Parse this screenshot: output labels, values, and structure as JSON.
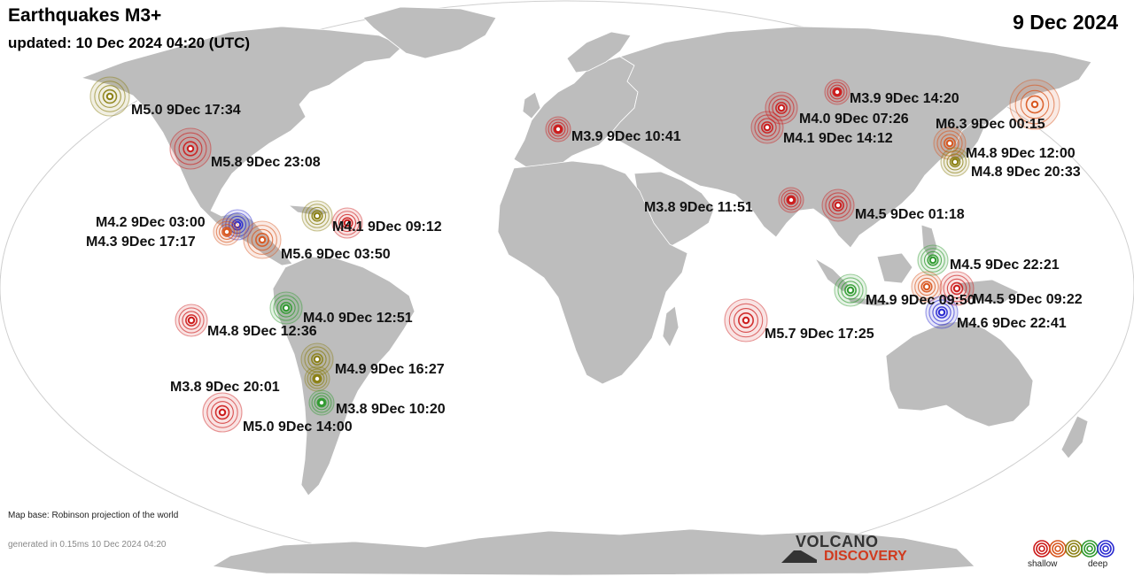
{
  "header": {
    "title": "Earthquakes M3+",
    "updated": "updated: 10 Dec 2024 04:20 (UTC)",
    "date": "9 Dec 2024"
  },
  "footer": {
    "map_base": "Map base: Robinson projection of the world",
    "generated": "generated in 0.15ms 10 Dec 2024 04:20"
  },
  "logo": {
    "line1": "VOLCANO",
    "line2": "DISCOVERY"
  },
  "legend": {
    "shallow": "shallow",
    "deep": "deep"
  },
  "colors": {
    "ocean": "#ffffff",
    "land": "#bdbdbd",
    "red": "#cc1a1a",
    "orange": "#d8561e",
    "olive": "#8a7f12",
    "green": "#2f9a2f",
    "blue": "#2a2ad0"
  },
  "quakes": [
    {
      "label": "M5.0  9Dec 17:34",
      "color": "olive",
      "place": "Alaska"
    },
    {
      "label": "M5.8  9Dec 23:08",
      "color": "red",
      "place": "California"
    },
    {
      "label": "M4.2  9Dec 03:00",
      "color": "blue",
      "place": "Mexico"
    },
    {
      "label": "M4.3  9Dec 17:17",
      "color": "orange",
      "place": "Mexico coast"
    },
    {
      "label": "M5.6  9Dec 03:50",
      "color": "orange",
      "place": "Central America"
    },
    {
      "label": "M4.1  9Dec 09:12",
      "color": "red",
      "place": "Caribbean"
    },
    {
      "label": "",
      "color": "olive",
      "place": "Caribbean"
    },
    {
      "label": "M4.8  9Dec 12:36",
      "color": "red",
      "place": "East Pacific"
    },
    {
      "label": "M4.0  9Dec 12:51",
      "color": "green",
      "place": "Peru"
    },
    {
      "label": "M4.9  9Dec 16:27",
      "color": "olive",
      "place": "Chile north"
    },
    {
      "label": "M3.8  9Dec 20:01",
      "color": "olive",
      "place": "Chile"
    },
    {
      "label": "M3.8  9Dec 10:20",
      "color": "green",
      "place": "Argentina"
    },
    {
      "label": "M5.0  9Dec 14:00",
      "color": "red",
      "place": "SE Pacific"
    },
    {
      "label": "M3.9  9Dec 10:41",
      "color": "red",
      "place": "Italy"
    },
    {
      "label": "M3.9  9Dec 14:20",
      "color": "red",
      "place": "Siberia"
    },
    {
      "label": "M4.0  9Dec 07:26",
      "color": "red",
      "place": "Kazakhstan"
    },
    {
      "label": "M4.1  9Dec 14:12",
      "color": "red",
      "place": "Kyrgyzstan"
    },
    {
      "label": "M6.3  9Dec 00:15",
      "color": "orange",
      "place": "Kuril"
    },
    {
      "label": "M4.8  9Dec 12:00",
      "color": "orange",
      "place": "Japan"
    },
    {
      "label": "M4.8  9Dec 20:33",
      "color": "olive",
      "place": "Japan south"
    },
    {
      "label": "M3.8  9Dec 11:51",
      "color": "red",
      "place": "India"
    },
    {
      "label": "M4.5  9Dec 01:18",
      "color": "red",
      "place": "Myanmar"
    },
    {
      "label": "M4.5  9Dec 22:21",
      "color": "green",
      "place": "Philippines"
    },
    {
      "label": "M4.9  9Dec 09:50",
      "color": "green",
      "place": "Sumatra"
    },
    {
      "label": "",
      "color": "orange",
      "place": "Indonesia"
    },
    {
      "label": "M4.5  9Dec 09:22",
      "color": "red",
      "place": "Sulawesi"
    },
    {
      "label": "M4.6  9Dec 22:41",
      "color": "blue",
      "place": "Banda Sea"
    },
    {
      "label": "M5.7  9Dec 17:25",
      "color": "red",
      "place": "Indian Ocean"
    }
  ]
}
